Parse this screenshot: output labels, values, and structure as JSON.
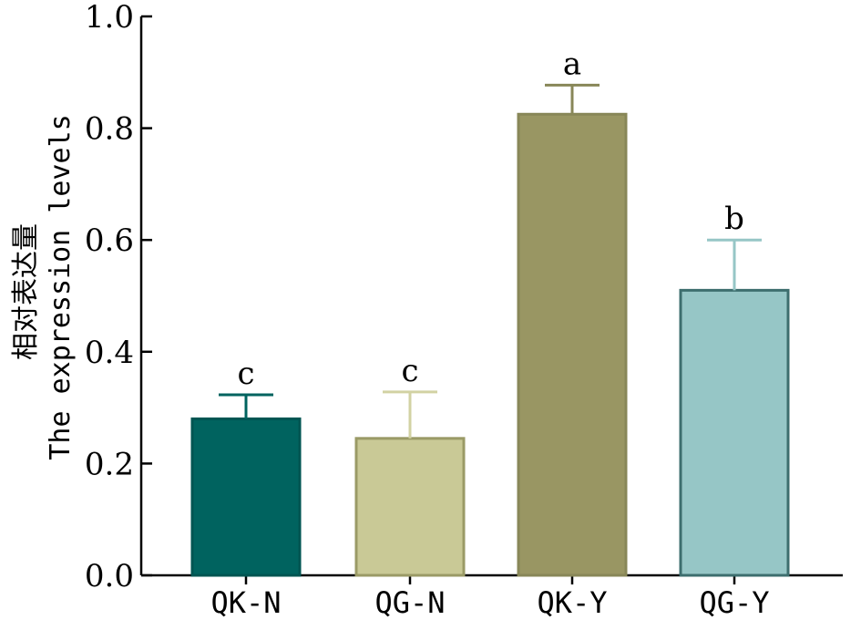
{
  "chart_data": {
    "type": "bar",
    "title": "",
    "xlabel": "",
    "ylabel": "相对表达量",
    "ylabel_en": "The expression levels",
    "categories": [
      "QK-N",
      "QG-N",
      "QK-Y",
      "QG-Y"
    ],
    "values": [
      0.28,
      0.245,
      0.825,
      0.51
    ],
    "errors": [
      0.043,
      0.083,
      0.052,
      0.09
    ],
    "significance": [
      "c",
      "c",
      "a",
      "b"
    ],
    "ylim": [
      0,
      1.0
    ],
    "yticks": [
      0.0,
      0.2,
      0.4,
      0.6,
      0.8,
      1.0
    ],
    "ytick_labels": [
      "0.0",
      "0.2",
      "0.4",
      "0.6",
      "0.8",
      "1.0"
    ],
    "grid": false,
    "bar_colors": [
      "#00635f",
      "#c9c996",
      "#999663",
      "#96c6c6"
    ],
    "bar_edge_colors": [
      "#005552",
      "#9a9a66",
      "#888758",
      "#3d6e6e"
    ],
    "error_colors": [
      "#00635f",
      "#d2d2a3",
      "#888758",
      "#96c6c6"
    ]
  }
}
